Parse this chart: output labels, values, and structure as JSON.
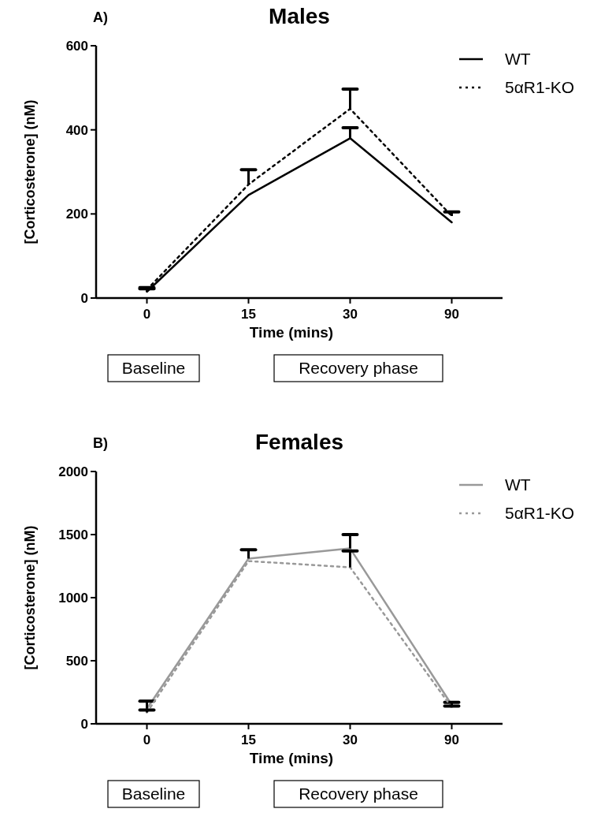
{
  "chart_data": [
    {
      "type": "line",
      "title": "Males",
      "xlabel": "Time (mins)",
      "ylabel": "[Corticosterone] (nM)",
      "annotations": [
        "A)",
        "Baseline",
        "Recovery phase"
      ],
      "categories": [
        "0",
        "15",
        "30",
        "90"
      ],
      "ylim": [
        0,
        600
      ],
      "yticks": [
        0,
        200,
        400,
        600
      ],
      "legend": "top right",
      "series": [
        {
          "name": "WT",
          "color": "#000000",
          "line_style": "solid",
          "values": [
            15,
            245,
            380,
            180
          ],
          "errors": [
            [
              15,
              22
            ],
            null,
            [
              380,
              405
            ],
            null
          ]
        },
        {
          "name": "5αR1-KO",
          "color": "#000000",
          "line_style": "dotted",
          "values": [
            20,
            270,
            450,
            195
          ],
          "errors": [
            [
              20,
              25
            ],
            [
              270,
              305
            ],
            [
              450,
              497
            ],
            [
              195,
              205
            ]
          ]
        }
      ]
    },
    {
      "type": "line",
      "title": "Females",
      "xlabel": "Time (mins)",
      "ylabel": "[Corticosterone] (nM)",
      "annotations": [
        "B)",
        "Baseline",
        "Recovery phase"
      ],
      "categories": [
        "0",
        "15",
        "30",
        "90"
      ],
      "ylim": [
        0,
        2000
      ],
      "yticks": [
        0,
        500,
        1000,
        1500,
        2000
      ],
      "legend": "top right",
      "series": [
        {
          "name": "WT",
          "color": "#999999",
          "line_style": "solid",
          "values": [
            120,
            1310,
            1390,
            150
          ],
          "errors": [
            [
              120,
              180
            ],
            [
              1310,
              1380
            ],
            [
              1390,
              1500
            ],
            [
              150,
              170
            ]
          ]
        },
        {
          "name": "5αR1-KO",
          "color": "#999999",
          "line_style": "dotted",
          "values": [
            90,
            1290,
            1240,
            130
          ],
          "errors": [
            [
              90,
              110
            ],
            null,
            [
              1240,
              1370
            ],
            [
              130,
              140
            ]
          ]
        }
      ]
    }
  ]
}
